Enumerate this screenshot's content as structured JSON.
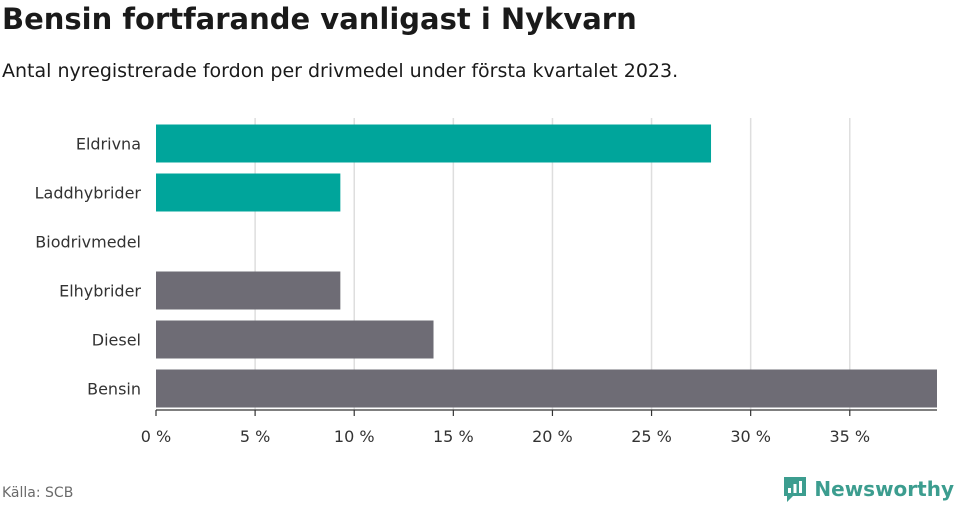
{
  "title": "Bensin fortfarande vanligast i Nykvarn",
  "subtitle": "Antal nyregistrerade fordon per drivmedel under första kvartalet 2023.",
  "source": "Källa: SCB",
  "brand": {
    "name": "Newsworthy",
    "icon": "newsworthy-logo-icon",
    "color": "#3c9d8f"
  },
  "colors": {
    "electric": "#00a59b",
    "other": "#6e6c75",
    "grid": "#dedede",
    "axis": "#333333"
  },
  "chart_data": {
    "type": "bar",
    "orientation": "horizontal",
    "categories": [
      "Eldrivna",
      "Laddhybrider",
      "Biodrivmedel",
      "Elhybrider",
      "Diesel",
      "Bensin"
    ],
    "values": [
      28,
      9.3,
      0,
      9.3,
      14,
      39.4
    ],
    "bar_colors": [
      "#00a59b",
      "#00a59b",
      "#00a59b",
      "#6e6c75",
      "#6e6c75",
      "#6e6c75"
    ],
    "xlim": [
      0,
      39.4
    ],
    "x_ticks": [
      0,
      5,
      10,
      15,
      20,
      25,
      30,
      35
    ],
    "x_tick_labels": [
      "0 %",
      "5 %",
      "10 %",
      "15 %",
      "20 %",
      "25 %",
      "30 %",
      "35 %"
    ],
    "title": "Bensin fortfarande vanligast i Nykvarn",
    "subtitle": "Antal nyregistrerade fordon per drivmedel under första kvartalet 2023.",
    "xlabel": "",
    "ylabel": "",
    "grid": true
  }
}
